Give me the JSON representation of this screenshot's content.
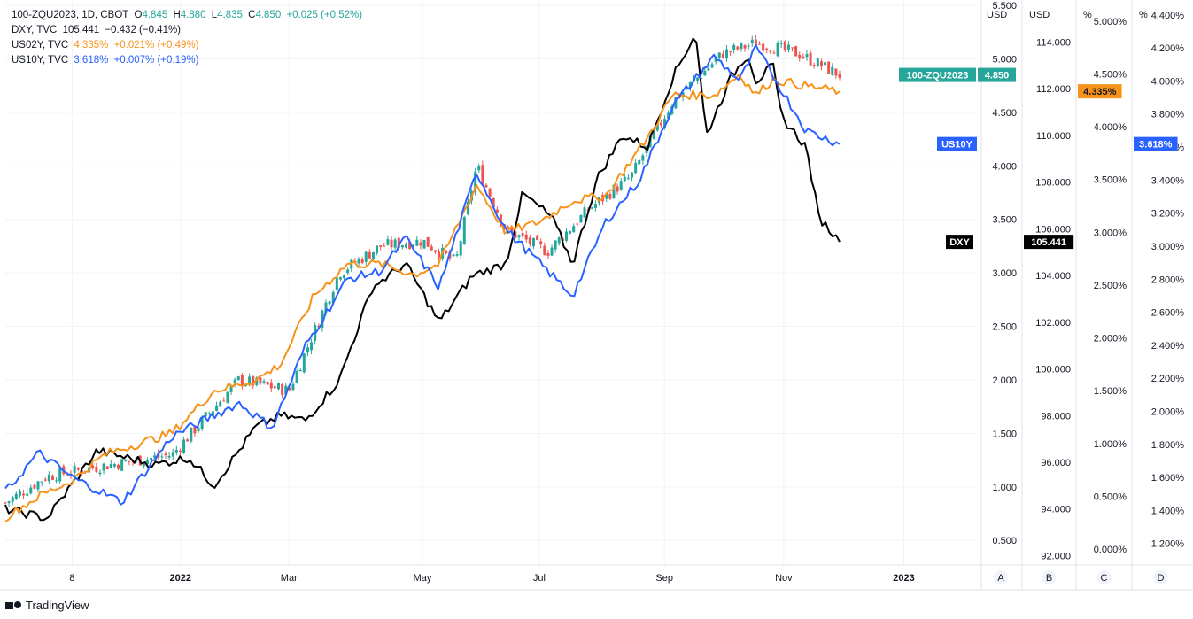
{
  "legend": {
    "main": {
      "symbol": "100-ZQU2023, 1D, CBOT",
      "o_label": "O",
      "o": "4.845",
      "h_label": "H",
      "h": "4.880",
      "l_label": "L",
      "l": "4.835",
      "c_label": "C",
      "c": "4.850",
      "change": "+0.025 (+0.52%)"
    },
    "dxy": {
      "symbol": "DXY, TVC",
      "value": "105.441",
      "change": "−0.432 (−0.41%)"
    },
    "us02y": {
      "symbol": "US02Y, TVC",
      "value": "4.335%",
      "change": "+0.021% (+0.49%)"
    },
    "us10y": {
      "symbol": "US10Y, TVC",
      "value": "3.618%",
      "change": "+0.007% (+0.19%)"
    }
  },
  "colors": {
    "up": "#26a69a",
    "down": "#ef5350",
    "dxy": "#000000",
    "us02y": "#f7931a",
    "us10y": "#2962ff",
    "grid": "#f0f3fa",
    "axis_text": "#131722"
  },
  "footer": {
    "brand": "TradingView"
  },
  "chart_data": {
    "type": "line",
    "x_ticks": [
      "8",
      "2022",
      "Mar",
      "May",
      "Jul",
      "Sep",
      "Nov",
      "2023"
    ],
    "axes": [
      {
        "id": "A",
        "unit": "USD",
        "ticks": [
          "5.500",
          "5.000",
          "4.500",
          "4.000",
          "3.500",
          "3.000",
          "2.500",
          "2.000",
          "1.500",
          "1.000",
          "0.500"
        ],
        "range": [
          0.27,
          5.55
        ]
      },
      {
        "id": "B",
        "unit": "USD",
        "ticks": [
          "114.000",
          "112.000",
          "110.000",
          "108.000",
          "106.000",
          "104.000",
          "102.000",
          "100.000",
          "98.000",
          "96.000",
          "94.000",
          "92.000"
        ],
        "range": [
          91.6,
          115.8
        ]
      },
      {
        "id": "C",
        "unit": "%",
        "ticks": [
          "5.000%",
          "4.500%",
          "4.000%",
          "3.500%",
          "3.000%",
          "2.500%",
          "2.000%",
          "1.500%",
          "1.000%",
          "0.500%",
          "0.000%"
        ],
        "range": [
          -0.15,
          5.2
        ]
      },
      {
        "id": "D",
        "unit": "%",
        "ticks": [
          "4.400%",
          "4.200%",
          "4.000%",
          "3.800%",
          "3.600%",
          "3.400%",
          "3.200%",
          "3.000%",
          "2.800%",
          "2.600%",
          "2.400%",
          "2.200%",
          "2.000%",
          "1.800%",
          "1.600%",
          "1.400%",
          "1.200%"
        ],
        "range": [
          1.07,
          4.49
        ]
      }
    ],
    "series": [
      {
        "name": "100-ZQU2023",
        "axis": "A",
        "kind": "candles",
        "keyframes": [
          [
            0,
            0.85
          ],
          [
            0.05,
            1.1
          ],
          [
            0.12,
            1.2
          ],
          [
            0.2,
            1.3
          ],
          [
            0.28,
            2.0
          ],
          [
            0.34,
            1.9
          ],
          [
            0.4,
            3.0
          ],
          [
            0.45,
            3.25
          ],
          [
            0.5,
            3.3
          ],
          [
            0.54,
            3.1
          ],
          [
            0.565,
            4.0
          ],
          [
            0.6,
            3.4
          ],
          [
            0.65,
            3.2
          ],
          [
            0.7,
            3.6
          ],
          [
            0.75,
            3.9
          ],
          [
            0.8,
            4.6
          ],
          [
            0.86,
            5.05
          ],
          [
            0.9,
            5.15
          ],
          [
            0.95,
            5.05
          ],
          [
            1,
            4.85
          ]
        ]
      },
      {
        "name": "DXY",
        "axis": "B",
        "kind": "line",
        "color": "#000000",
        "keyframes": [
          [
            0,
            94.0
          ],
          [
            0.05,
            93.6
          ],
          [
            0.11,
            96.5
          ],
          [
            0.18,
            95.9
          ],
          [
            0.22,
            96.2
          ],
          [
            0.25,
            95.0
          ],
          [
            0.3,
            97.5
          ],
          [
            0.33,
            98.0
          ],
          [
            0.36,
            97.8
          ],
          [
            0.4,
            99.5
          ],
          [
            0.44,
            103.5
          ],
          [
            0.48,
            104.5
          ],
          [
            0.52,
            102.0
          ],
          [
            0.56,
            104.0
          ],
          [
            0.6,
            104.5
          ],
          [
            0.62,
            107.5
          ],
          [
            0.655,
            106.5
          ],
          [
            0.68,
            104.5
          ],
          [
            0.71,
            108.2
          ],
          [
            0.74,
            110.0
          ],
          [
            0.77,
            109.5
          ],
          [
            0.8,
            112.5
          ],
          [
            0.8275,
            114.4
          ],
          [
            0.84,
            110.0
          ],
          [
            0.87,
            112.5
          ],
          [
            0.89,
            113.5
          ],
          [
            0.9,
            112.3
          ],
          [
            0.92,
            113.0
          ],
          [
            0.93,
            110.8
          ],
          [
            0.96,
            109.5
          ],
          [
            0.975,
            106.5
          ],
          [
            1,
            105.44
          ]
        ]
      },
      {
        "name": "US02Y",
        "axis": "C",
        "kind": "line",
        "color": "#f7931a",
        "keyframes": [
          [
            0,
            0.3
          ],
          [
            0.04,
            0.5
          ],
          [
            0.08,
            0.65
          ],
          [
            0.12,
            0.9
          ],
          [
            0.2,
            1.1
          ],
          [
            0.25,
            1.5
          ],
          [
            0.3,
            1.6
          ],
          [
            0.33,
            1.75
          ],
          [
            0.37,
            2.4
          ],
          [
            0.41,
            2.7
          ],
          [
            0.45,
            2.7
          ],
          [
            0.49,
            2.6
          ],
          [
            0.52,
            2.7
          ],
          [
            0.565,
            3.45
          ],
          [
            0.6,
            3.0
          ],
          [
            0.64,
            3.1
          ],
          [
            0.68,
            3.3
          ],
          [
            0.72,
            3.35
          ],
          [
            0.77,
            3.9
          ],
          [
            0.8,
            4.3
          ],
          [
            0.85,
            4.3
          ],
          [
            0.88,
            4.5
          ],
          [
            0.9,
            4.3
          ],
          [
            0.92,
            4.45
          ],
          [
            0.95,
            4.4
          ],
          [
            1,
            4.335
          ]
        ]
      },
      {
        "name": "US10Y",
        "axis": "D",
        "kind": "line",
        "color": "#2962ff",
        "keyframes": [
          [
            0,
            1.51
          ],
          [
            0.04,
            1.75
          ],
          [
            0.08,
            1.6
          ],
          [
            0.12,
            1.5
          ],
          [
            0.14,
            1.45
          ],
          [
            0.2,
            1.85
          ],
          [
            0.24,
            1.95
          ],
          [
            0.28,
            2.05
          ],
          [
            0.32,
            1.9
          ],
          [
            0.36,
            2.4
          ],
          [
            0.41,
            2.8
          ],
          [
            0.45,
            2.85
          ],
          [
            0.48,
            3.05
          ],
          [
            0.52,
            2.75
          ],
          [
            0.565,
            3.45
          ],
          [
            0.6,
            3.1
          ],
          [
            0.64,
            2.9
          ],
          [
            0.68,
            2.7
          ],
          [
            0.72,
            3.15
          ],
          [
            0.76,
            3.4
          ],
          [
            0.8,
            3.85
          ],
          [
            0.85,
            4.15
          ],
          [
            0.88,
            4.0
          ],
          [
            0.9,
            4.2
          ],
          [
            0.93,
            3.95
          ],
          [
            0.96,
            3.7
          ],
          [
            1,
            3.618
          ]
        ]
      }
    ]
  },
  "price_tags": [
    {
      "label": "100-ZQU2023",
      "value": "4.850",
      "axis": "A",
      "y": 4.85,
      "bg": "#26a69a",
      "fg": "#ffffff"
    },
    {
      "label": "US10Y",
      "value": "3.618%",
      "axis": "D",
      "y": 3.618,
      "bg": "#2962ff",
      "fg": "#ffffff"
    },
    {
      "label": "DXY",
      "value": "105.441",
      "axis": "B",
      "y": 105.441,
      "bg": "#000000",
      "fg": "#ffffff"
    },
    {
      "label": "",
      "value": "4.335%",
      "axis": "C",
      "y": 4.335,
      "bg": "#f7931a",
      "fg": "#131722"
    }
  ]
}
